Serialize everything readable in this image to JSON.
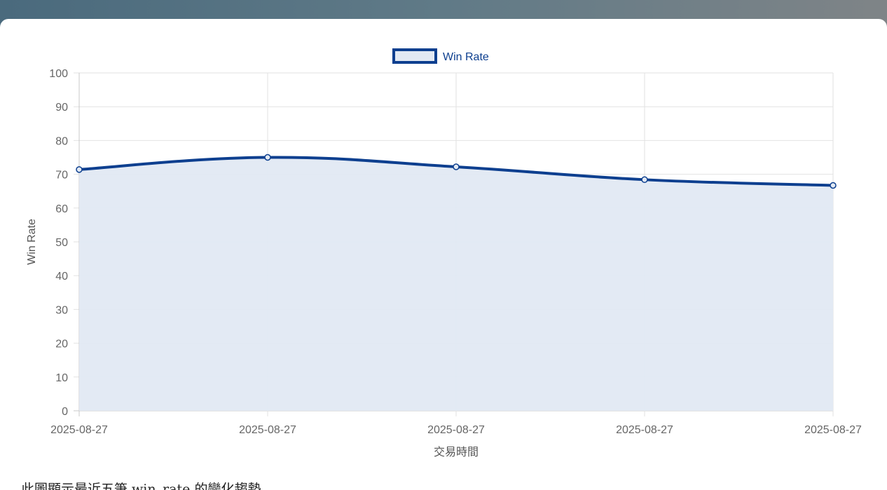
{
  "chart_data": {
    "type": "line",
    "categories": [
      "2025-08-27",
      "2025-08-27",
      "2025-08-27",
      "2025-08-27",
      "2025-08-27"
    ],
    "series": [
      {
        "name": "Win Rate",
        "values": [
          71.4,
          75.0,
          72.2,
          68.4,
          66.7
        ]
      }
    ],
    "xlabel": "交易時間",
    "ylabel": "Win Rate",
    "ylim": [
      0,
      100
    ],
    "yticks": [
      0,
      10,
      20,
      30,
      40,
      50,
      60,
      70,
      80,
      90,
      100
    ],
    "grid": true,
    "filled": true,
    "smooth": true,
    "legend_position": "top",
    "line_color": "#0d3f8f",
    "fill_color": "#e2e9f3"
  },
  "caption": "此圖顯示最近五筆 win_rate 的變化趨勢。"
}
